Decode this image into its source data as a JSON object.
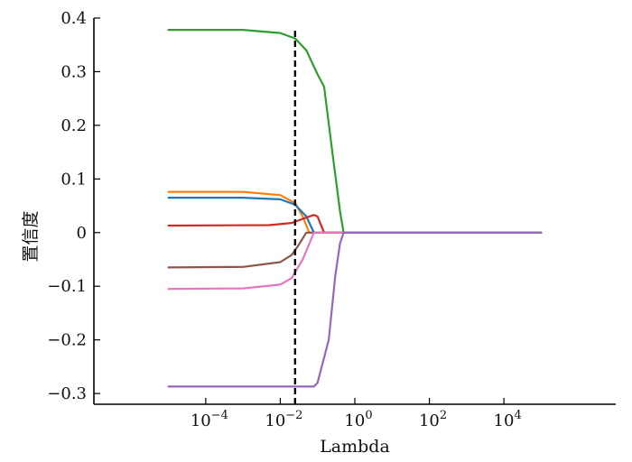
{
  "chart_data": {
    "type": "line",
    "xlabel": "Lambda",
    "ylabel": "置信度",
    "x_scale": "log",
    "xlim": [
      1e-07,
      10000000
    ],
    "ylim": [
      -0.32,
      0.4
    ],
    "grid": false,
    "legend": "none",
    "x_ticks": [
      {
        "value": 0.0001,
        "base": "10",
        "exp": "−4"
      },
      {
        "value": 0.01,
        "base": "10",
        "exp": "−2"
      },
      {
        "value": 1,
        "base": "10",
        "exp": "0"
      },
      {
        "value": 100,
        "base": "10",
        "exp": "2"
      },
      {
        "value": 10000,
        "base": "10",
        "exp": "4"
      }
    ],
    "y_ticks": [
      {
        "value": 0.4,
        "label": "0.4"
      },
      {
        "value": 0.3,
        "label": "0.3"
      },
      {
        "value": 0.2,
        "label": "0.2"
      },
      {
        "value": 0.1,
        "label": "0.1"
      },
      {
        "value": 0,
        "label": "0"
      },
      {
        "value": -0.1,
        "label": "−0.1"
      },
      {
        "value": -0.2,
        "label": "−0.2"
      },
      {
        "value": -0.3,
        "label": "−0.3"
      }
    ],
    "vertical_marker": {
      "x": 0.025,
      "style": "dashed",
      "color": "#000000"
    },
    "series": [
      {
        "color": "#2ca02c",
        "points": [
          [
            1e-05,
            0.378
          ],
          [
            0.001,
            0.378
          ],
          [
            0.01,
            0.372
          ],
          [
            0.025,
            0.362
          ],
          [
            0.05,
            0.34
          ],
          [
            0.1,
            0.295
          ],
          [
            0.15,
            0.272
          ],
          [
            0.25,
            0.15
          ],
          [
            0.4,
            0.04
          ],
          [
            0.5,
            0.0
          ],
          [
            100000,
            0.0
          ]
        ]
      },
      {
        "color": "#ff7f0e",
        "points": [
          [
            1e-05,
            0.076
          ],
          [
            0.001,
            0.076
          ],
          [
            0.01,
            0.07
          ],
          [
            0.025,
            0.055
          ],
          [
            0.04,
            0.03
          ],
          [
            0.06,
            0.0
          ],
          [
            100000,
            0.0
          ]
        ]
      },
      {
        "color": "#1f77b4",
        "points": [
          [
            1e-05,
            0.065
          ],
          [
            0.001,
            0.065
          ],
          [
            0.01,
            0.062
          ],
          [
            0.025,
            0.052
          ],
          [
            0.05,
            0.03
          ],
          [
            0.08,
            0.0
          ],
          [
            100000,
            0.0
          ]
        ]
      },
      {
        "color": "#d62728",
        "points": [
          [
            1e-05,
            0.013
          ],
          [
            0.005,
            0.014
          ],
          [
            0.02,
            0.018
          ],
          [
            0.05,
            0.028
          ],
          [
            0.08,
            0.033
          ],
          [
            0.1,
            0.03
          ],
          [
            0.15,
            0.0
          ],
          [
            100000,
            0.0
          ]
        ]
      },
      {
        "color": "#8c564b",
        "points": [
          [
            1e-05,
            -0.065
          ],
          [
            0.001,
            -0.064
          ],
          [
            0.01,
            -0.055
          ],
          [
            0.02,
            -0.042
          ],
          [
            0.03,
            -0.025
          ],
          [
            0.05,
            0.0
          ],
          [
            100000,
            0.0
          ]
        ]
      },
      {
        "color": "#e377c2",
        "points": [
          [
            1e-05,
            -0.105
          ],
          [
            0.001,
            -0.104
          ],
          [
            0.01,
            -0.097
          ],
          [
            0.02,
            -0.085
          ],
          [
            0.04,
            -0.05
          ],
          [
            0.08,
            0.0
          ],
          [
            100000,
            0.0
          ]
        ]
      },
      {
        "color": "#9467bd",
        "points": [
          [
            1e-05,
            -0.287
          ],
          [
            0.01,
            -0.287
          ],
          [
            0.05,
            -0.287
          ],
          [
            0.08,
            -0.287
          ],
          [
            0.1,
            -0.28
          ],
          [
            0.2,
            -0.2
          ],
          [
            0.3,
            -0.08
          ],
          [
            0.4,
            -0.02
          ],
          [
            0.5,
            0.0
          ],
          [
            100000,
            0.0
          ]
        ]
      }
    ]
  }
}
